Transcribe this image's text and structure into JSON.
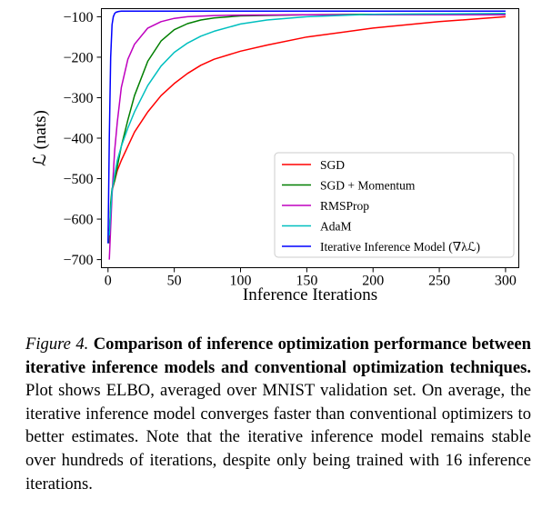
{
  "chart_data": {
    "type": "line",
    "xlabel": "Inference Iterations",
    "ylabel": "ℒ (nats)",
    "xlim": [
      -5,
      310
    ],
    "ylim": [
      -720,
      -80
    ],
    "xticks": [
      0,
      50,
      100,
      150,
      200,
      250,
      300
    ],
    "yticks": [
      -100,
      -200,
      -300,
      -400,
      -500,
      -600,
      -700
    ],
    "xtick_labels": [
      "0",
      "50",
      "100",
      "150",
      "200",
      "250",
      "300"
    ],
    "ytick_labels": [
      "−100",
      "−200",
      "−300",
      "−400",
      "−500",
      "−600",
      "−700"
    ],
    "grid": false,
    "legend_position": "lower-right",
    "series": [
      {
        "name": "SGD",
        "color": "#ff0000",
        "x": [
          1,
          2,
          3,
          5,
          7,
          10,
          15,
          20,
          30,
          40,
          50,
          60,
          70,
          80,
          100,
          120,
          150,
          200,
          250,
          300
        ],
        "y": [
          -630,
          -580,
          -530,
          -505,
          -480,
          -455,
          -420,
          -385,
          -335,
          -295,
          -265,
          -240,
          -220,
          -205,
          -185,
          -170,
          -150,
          -128,
          -112,
          -100
        ]
      },
      {
        "name": "SGD + Momentum",
        "color": "#007f00",
        "x": [
          1,
          2,
          3,
          5,
          7,
          10,
          15,
          20,
          30,
          40,
          50,
          60,
          70,
          80,
          100,
          150,
          200,
          300
        ],
        "y": [
          -660,
          -560,
          -525,
          -505,
          -470,
          -420,
          -355,
          -295,
          -210,
          -160,
          -132,
          -117,
          -108,
          -103,
          -98,
          -95,
          -94,
          -93
        ]
      },
      {
        "name": "RMSProp",
        "color": "#bf00bf",
        "x": [
          1,
          2,
          3,
          5,
          7,
          10,
          15,
          20,
          30,
          40,
          50,
          60,
          80,
          100,
          150,
          200,
          300
        ],
        "y": [
          -700,
          -620,
          -540,
          -430,
          -360,
          -275,
          -205,
          -168,
          -128,
          -112,
          -104,
          -100,
          -97,
          -96,
          -95,
          -95,
          -95
        ]
      },
      {
        "name": "AdaM",
        "color": "#00bfbf",
        "x": [
          1,
          2,
          3,
          5,
          7,
          10,
          15,
          20,
          30,
          40,
          50,
          60,
          70,
          80,
          100,
          120,
          150,
          200,
          300
        ],
        "y": [
          -640,
          -580,
          -530,
          -490,
          -455,
          -420,
          -375,
          -335,
          -270,
          -222,
          -188,
          -165,
          -148,
          -136,
          -118,
          -108,
          -100,
          -94,
          -92
        ]
      },
      {
        "name": "Iterative Inference Model (∇λℒ)",
        "color": "#0000ff",
        "x": [
          0,
          1,
          2,
          3,
          4,
          5,
          6,
          8,
          10,
          15,
          20,
          30,
          50,
          100,
          200,
          300
        ],
        "y": [
          -660,
          -400,
          -200,
          -120,
          -100,
          -92,
          -89,
          -87,
          -86,
          -86,
          -86,
          -86,
          -86,
          -86,
          -86,
          -86
        ]
      }
    ]
  },
  "caption": {
    "figure_label": "Figure 4.",
    "bold_text": "Comparison of inference optimization performance between iterative inference models and conventional optimization techniques.",
    "body_text": "Plot shows ELBO, averaged over MNIST validation set. On average, the iterative inference model converges faster than conventional optimizers to better estimates. Note that the iterative inference model remains stable over hundreds of iterations, despite only being trained with 16 inference iterations."
  }
}
